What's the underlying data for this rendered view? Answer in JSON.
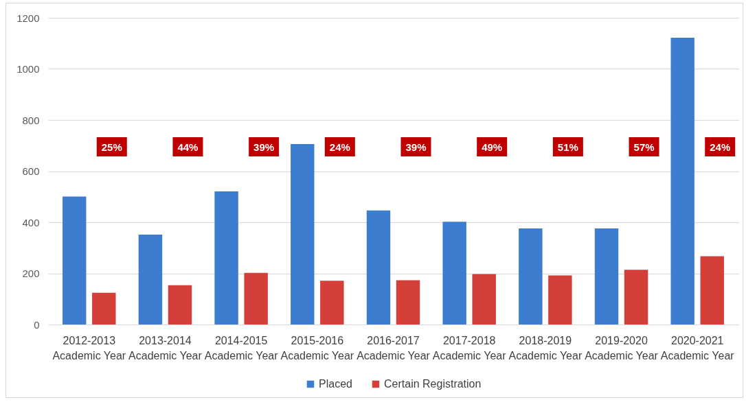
{
  "chart_data": {
    "type": "bar",
    "categories": [
      "2012-2013 Academic Year",
      "2013-2014 Academic Year",
      "2014-2015 Academic Year",
      "2015-2016 Academic Year",
      "2016-2017 Academic Year",
      "2017-2018 Academic Year",
      "2018-2019 Academic Year",
      "2019-2020 Academic Year",
      "2020-2021 Academic Year"
    ],
    "series": [
      {
        "name": "Placed",
        "color": "#3c7dd0",
        "values": [
          501,
          352,
          521,
          706,
          446,
          402,
          376,
          376,
          1122
        ]
      },
      {
        "name": "Certain Registration",
        "color": "#d43f3a",
        "values": [
          124,
          154,
          202,
          171,
          173,
          197,
          192,
          214,
          267
        ]
      }
    ],
    "ylim": [
      0,
      1200
    ],
    "yticks": [
      0,
      200,
      400,
      600,
      800,
      {
        "value": 1000,
        "label": "1000"
      },
      {
        "value": 1200,
        "label": "1200"
      }
    ],
    "grid": "y",
    "legend": "bottom",
    "annotations": [
      "25%",
      "44%",
      "39%",
      "24%",
      "39%",
      "49%",
      "51%",
      "57%",
      "24%"
    ]
  }
}
